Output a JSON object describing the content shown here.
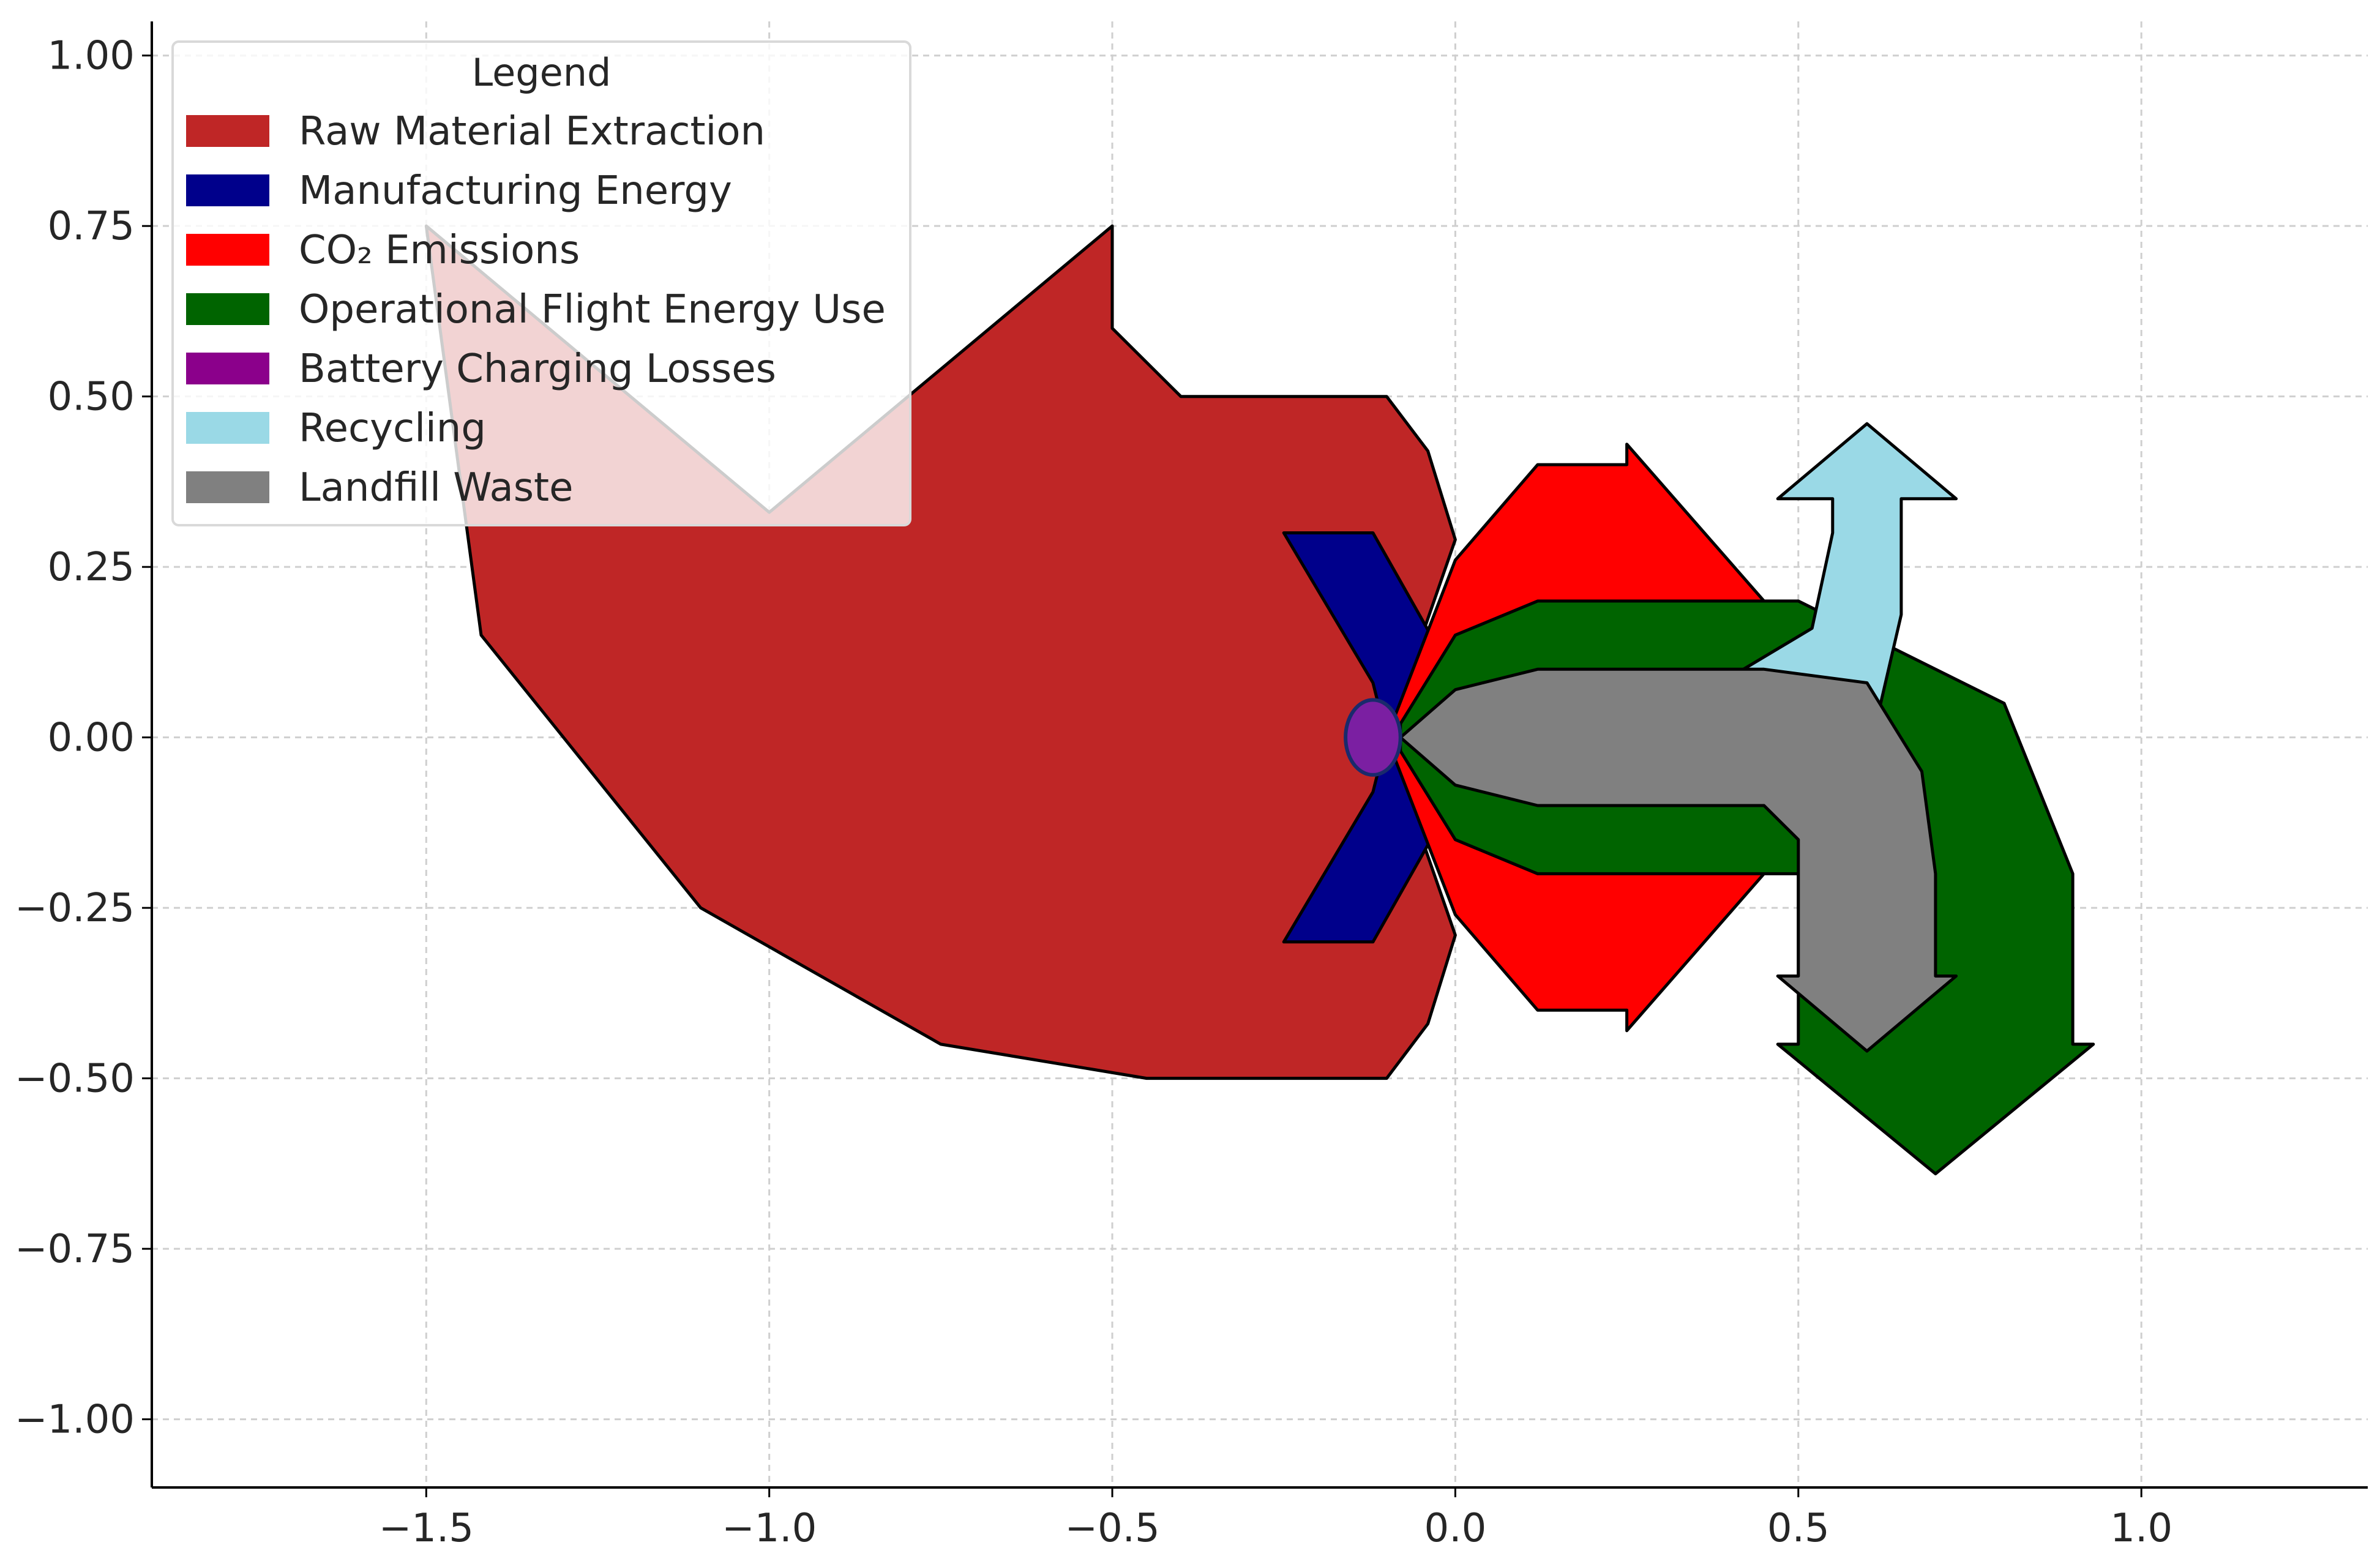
{
  "chart_data": {
    "type": "sankey",
    "title": "",
    "xlabel": "",
    "ylabel": "",
    "xlim": [
      -1.9,
      1.33
    ],
    "ylim": [
      -1.1,
      1.05
    ],
    "x_ticks": [
      -1.5,
      -1.0,
      -0.5,
      0.0,
      0.5,
      1.0
    ],
    "x_tick_labels": [
      "−1.5",
      "−1.0",
      "−0.5",
      "0.0",
      "0.5",
      "1.0"
    ],
    "y_ticks": [
      1.0,
      0.75,
      0.5,
      0.25,
      0.0,
      -0.25,
      -0.5,
      -0.75,
      -1.0
    ],
    "y_tick_labels": [
      "1.00",
      "0.75",
      "0.50",
      "0.25",
      "0.00",
      "−0.25",
      "−0.50",
      "−0.75",
      "−1.00"
    ],
    "grid": true,
    "legend": {
      "title": "Legend",
      "placement": "top-left",
      "entries": [
        {
          "label": "Raw Material Extraction",
          "color": "#bf2626"
        },
        {
          "label": "Manufacturing Energy",
          "color": "#00008b"
        },
        {
          "label": "CO₂ Emissions",
          "color": "#ff0000"
        },
        {
          "label": "Operational Flight Energy Use",
          "color": "#006400"
        },
        {
          "label": "Battery Charging Losses",
          "color": "#8b008b"
        },
        {
          "label": "Recycling",
          "color": "#9ad9e6"
        },
        {
          "label": "Landfill Waste",
          "color": "#808080"
        }
      ]
    },
    "flows": [
      {
        "name": "Raw Material Extraction",
        "color": "#bf2626",
        "outline": [
          [
            -0.1,
            0.5
          ],
          [
            -0.4,
            0.5
          ],
          [
            -0.5,
            0.6
          ],
          [
            -0.5,
            0.75
          ],
          [
            -1.0,
            0.33
          ],
          [
            -1.5,
            0.75
          ],
          [
            -1.42,
            0.15
          ],
          [
            -1.1,
            -0.25
          ],
          [
            -0.75,
            -0.45
          ],
          [
            -0.45,
            -0.5
          ],
          [
            -0.1,
            -0.5
          ],
          [
            -0.04,
            -0.42
          ],
          [
            0.0,
            -0.29
          ],
          [
            -0.1,
            0.0
          ],
          [
            0.0,
            0.29
          ],
          [
            -0.04,
            0.42
          ]
        ]
      },
      {
        "name": "Manufacturing Energy",
        "color": "#00008b",
        "outline": [
          [
            -0.25,
            0.3
          ],
          [
            -0.12,
            0.3
          ],
          [
            -0.03,
            0.14
          ],
          [
            -0.1,
            0.0
          ],
          [
            -0.03,
            -0.14
          ],
          [
            -0.12,
            -0.3
          ],
          [
            -0.25,
            -0.3
          ],
          [
            -0.12,
            -0.08
          ],
          [
            -0.1,
            0.0
          ],
          [
            -0.12,
            0.08
          ]
        ]
      },
      {
        "name": "CO₂ Emissions",
        "color": "#ff0000",
        "outline": [
          [
            -0.1,
            0.0
          ],
          [
            0.0,
            0.26
          ],
          [
            0.12,
            0.4
          ],
          [
            0.25,
            0.4
          ],
          [
            0.25,
            0.43
          ],
          [
            0.45,
            0.2
          ],
          [
            0.45,
            -0.2
          ],
          [
            0.25,
            -0.43
          ],
          [
            0.25,
            -0.4
          ],
          [
            0.12,
            -0.4
          ],
          [
            0.0,
            -0.26
          ]
        ]
      },
      {
        "name": "Operational Flight Energy Use",
        "color": "#006400",
        "outline": [
          [
            -0.08,
            0.02
          ],
          [
            0.0,
            0.15
          ],
          [
            0.12,
            0.2
          ],
          [
            0.5,
            0.2
          ],
          [
            0.8,
            0.05
          ],
          [
            0.9,
            -0.2
          ],
          [
            0.9,
            -0.45
          ],
          [
            0.93,
            -0.45
          ],
          [
            0.7,
            -0.64
          ],
          [
            0.47,
            -0.45
          ],
          [
            0.5,
            -0.45
          ],
          [
            0.5,
            -0.2
          ],
          [
            0.12,
            -0.2
          ],
          [
            0.0,
            -0.15
          ],
          [
            -0.08,
            -0.02
          ]
        ]
      },
      {
        "name": "Recycling",
        "color": "#9ad9e6",
        "outline": [
          [
            0.42,
            0.1
          ],
          [
            0.52,
            0.16
          ],
          [
            0.55,
            0.3
          ],
          [
            0.55,
            0.35
          ],
          [
            0.47,
            0.35
          ],
          [
            0.6,
            0.46
          ],
          [
            0.73,
            0.35
          ],
          [
            0.65,
            0.35
          ],
          [
            0.65,
            0.18
          ],
          [
            0.62,
            0.05
          ],
          [
            0.6,
            0.0
          ],
          [
            0.55,
            0.07
          ]
        ]
      },
      {
        "name": "Landfill Waste",
        "color": "#808080",
        "outline": [
          [
            -0.08,
            0.0
          ],
          [
            0.0,
            0.07
          ],
          [
            0.12,
            0.1
          ],
          [
            0.45,
            0.1
          ],
          [
            0.6,
            0.08
          ],
          [
            0.68,
            -0.05
          ],
          [
            0.7,
            -0.2
          ],
          [
            0.7,
            -0.35
          ],
          [
            0.73,
            -0.35
          ],
          [
            0.6,
            -0.46
          ],
          [
            0.47,
            -0.35
          ],
          [
            0.5,
            -0.35
          ],
          [
            0.5,
            -0.15
          ],
          [
            0.45,
            -0.1
          ],
          [
            0.12,
            -0.1
          ],
          [
            0.0,
            -0.07
          ]
        ]
      },
      {
        "name": "Battery Charging Losses",
        "color": "#8b008b",
        "center": [
          -0.12,
          0.0
        ],
        "radius_x": 0.04,
        "radius_y": 0.055
      }
    ]
  }
}
